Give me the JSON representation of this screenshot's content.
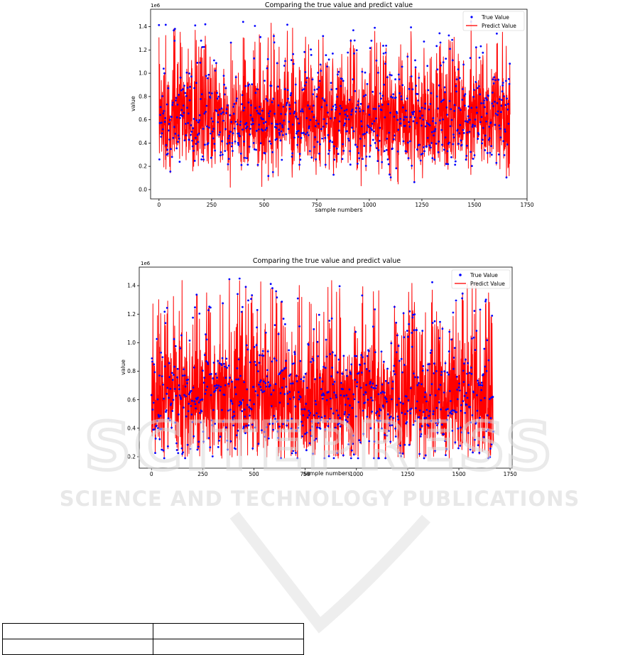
{
  "watermark": {
    "word": "SCITEPRESS",
    "tagline": "SCIENCE AND TECHNOLOGY PUBLICATIONS",
    "color": "#d9d9d9"
  },
  "chart_data": [
    {
      "type": "scatter+line",
      "title": "Comparing the true value and predict value",
      "xlabel": "sample numbers",
      "ylabel": "value",
      "y_offset_text": "1e6",
      "xlim": [
        -40,
        1750
      ],
      "ylim": [
        -0.08,
        1.55
      ],
      "xticks": [
        0,
        250,
        500,
        750,
        1000,
        1250,
        1500,
        1750
      ],
      "yticks": [
        0.0,
        0.2,
        0.4,
        0.6,
        0.8,
        1.0,
        1.2,
        1.4
      ],
      "legend": "top-right",
      "n_samples": 1670,
      "value_range": [
        0.02,
        1.46
      ],
      "series": [
        {
          "name": "True Value",
          "style": "points",
          "color": "#0000ff"
        },
        {
          "name": "Predict Value",
          "style": "line",
          "color": "#ff0000"
        }
      ]
    },
    {
      "type": "scatter+line",
      "title": "Comparing the true value and predict value",
      "xlabel": "sample numbers",
      "ylabel": "value",
      "y_offset_text": "1e6",
      "xlim": [
        -60,
        1760
      ],
      "ylim": [
        0.12,
        1.53
      ],
      "xticks": [
        0,
        250,
        500,
        750,
        1000,
        1250,
        1500,
        1750
      ],
      "yticks": [
        0.2,
        0.4,
        0.6,
        0.8,
        1.0,
        1.2,
        1.4
      ],
      "legend": "top-right",
      "n_samples": 1670,
      "value_range": [
        0.19,
        1.46
      ],
      "series": [
        {
          "name": "True Value",
          "style": "points",
          "color": "#0000ff"
        },
        {
          "name": "Predict Value",
          "style": "line",
          "color": "#ff0000"
        }
      ]
    }
  ]
}
